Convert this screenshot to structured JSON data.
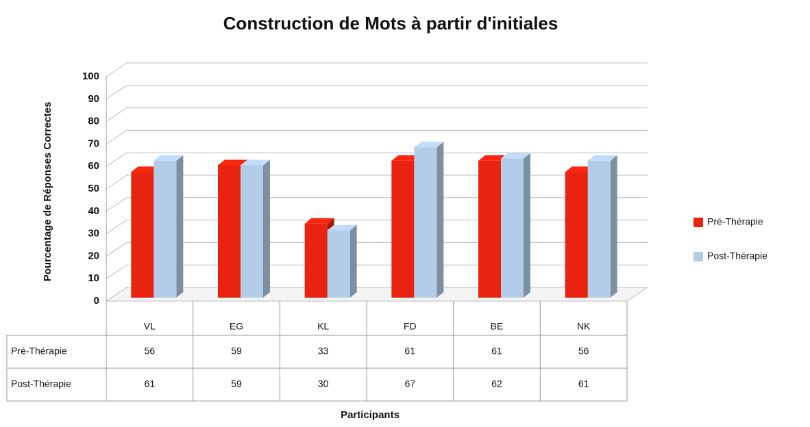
{
  "chart_data": {
    "type": "bar3d",
    "title": "Construction de Mots à partir d'initiales",
    "ylabel": "Pourcentage de Réponses Correctes",
    "xlabel": "Participants",
    "categories": [
      "VL",
      "EG",
      "KL",
      "FD",
      "BE",
      "NK"
    ],
    "series": [
      {
        "name": "Pré-Thérapie",
        "color": "#e8230f",
        "values": [
          56,
          59,
          33,
          61,
          61,
          56
        ]
      },
      {
        "name": "Post-Thérapie",
        "color": "#b3cde8",
        "values": [
          61,
          59,
          30,
          67,
          62,
          61
        ]
      }
    ],
    "ylim": [
      0,
      100
    ],
    "yticks": [
      0,
      10,
      20,
      30,
      40,
      50,
      60,
      70,
      80,
      90,
      100
    ],
    "grid": true,
    "legend": "right",
    "data_table": true
  }
}
